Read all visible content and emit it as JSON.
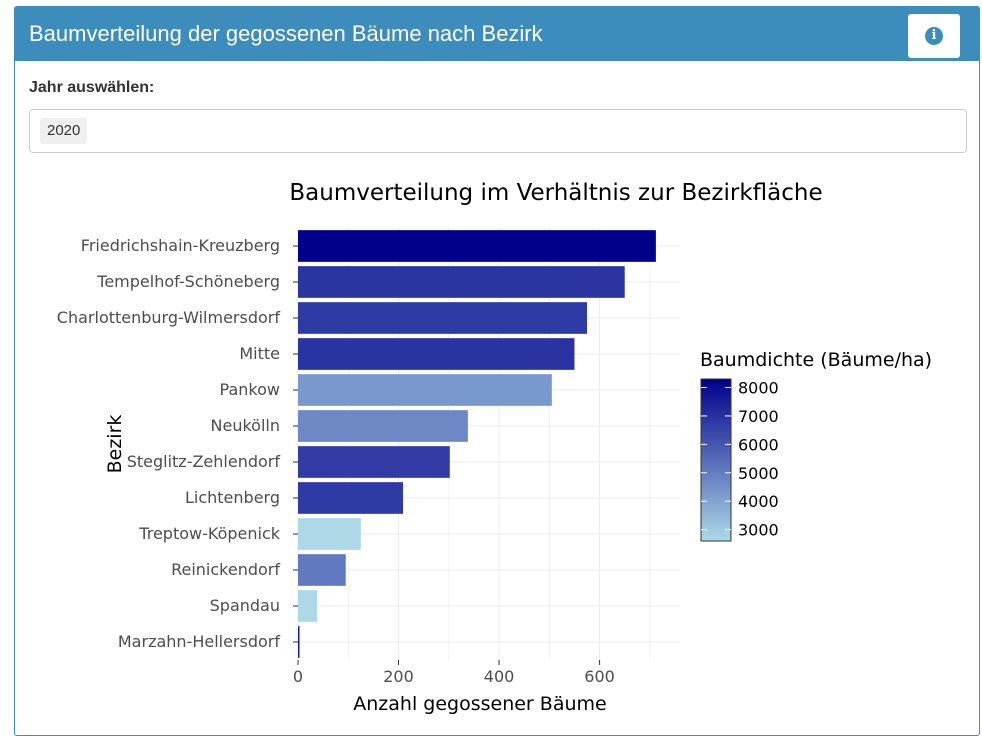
{
  "box": {
    "title": "Baumverteilung der gegossenen Bäume nach Bezirk",
    "info_icon": "info-circle-icon"
  },
  "year_select": {
    "label": "Jahr auswählen:",
    "selected": "2020"
  },
  "colors": {
    "header": "#3c8dbc",
    "scale_low": "#add8e6",
    "scale_high": "#00008b"
  },
  "chart_data": {
    "type": "bar",
    "orientation": "horizontal",
    "title": "Baumverteilung im Verhältnis zur Bezirkfläche",
    "xlabel": "Anzahl gegossener Bäume",
    "ylabel": "Bezirk",
    "xlim": [
      0,
      760
    ],
    "xticks": [
      0,
      200,
      400,
      600
    ],
    "grid": true,
    "categories": [
      "Friedrichshain-Kreuzberg",
      "Tempelhof-Schöneberg",
      "Charlottenburg-Wilmersdorf",
      "Mitte",
      "Pankow",
      "Neukölln",
      "Steglitz-Zehlendorf",
      "Lichtenberg",
      "Treptow-Köpenick",
      "Reinickendorf",
      "Spandau",
      "Marzahn-Hellersdorf"
    ],
    "values": [
      712,
      650,
      575,
      550,
      505,
      338,
      302,
      209,
      125,
      95,
      38,
      3
    ],
    "density": [
      8300,
      6900,
      6750,
      6950,
      4300,
      4700,
      6700,
      6750,
      2600,
      5100,
      2600,
      7500
    ],
    "legend": {
      "title": "Baumdichte (Bäume/ha)",
      "placement": "right",
      "ticks": [
        3000,
        4000,
        5000,
        6000,
        7000,
        8000
      ],
      "range": [
        2600,
        8300
      ]
    }
  }
}
